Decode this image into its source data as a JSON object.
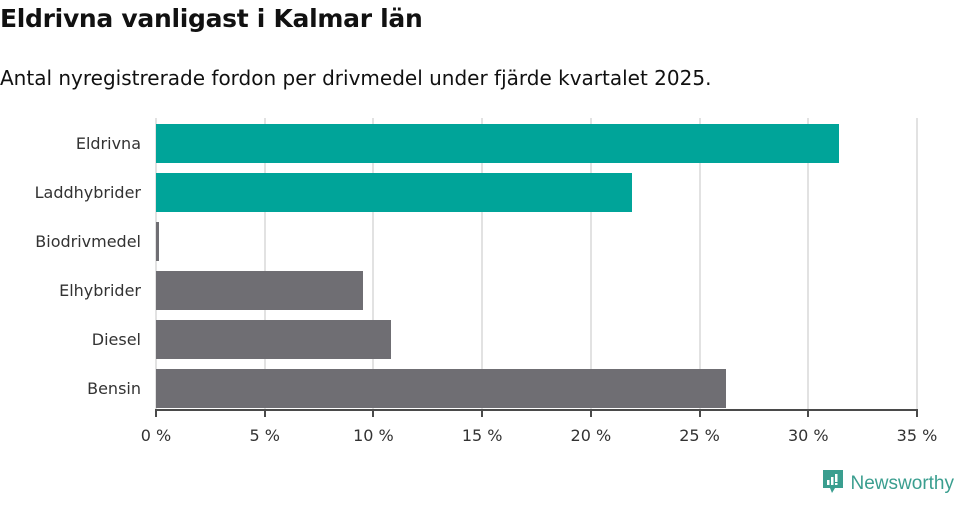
{
  "header": {
    "title": "Eldrivna vanligast i Kalmar län",
    "subtitle": "Antal nyregistrerade fordon per drivmedel under fjärde kvartalet 2025."
  },
  "colors": {
    "highlight": "#00a499",
    "default": "#6f6e73",
    "grid": "#e2e2e2",
    "axis": "#4a4a4a",
    "brand": "#3a9e8f"
  },
  "chart_data": {
    "type": "bar",
    "orientation": "horizontal",
    "title": "Eldrivna vanligast i Kalmar län",
    "subtitle": "Antal nyregistrerade fordon per drivmedel under fjärde kvartalet 2025.",
    "categories": [
      "Eldrivna",
      "Laddhybrider",
      "Biodrivmedel",
      "Elhybrider",
      "Diesel",
      "Bensin"
    ],
    "values": [
      31.4,
      21.9,
      0.1,
      9.5,
      10.8,
      26.2
    ],
    "highlighted": [
      true,
      true,
      false,
      false,
      false,
      false
    ],
    "xlabel": "",
    "ylabel": "",
    "xlim": [
      0,
      35
    ],
    "xticks": [
      0,
      5,
      10,
      15,
      20,
      25,
      30,
      35
    ],
    "xtick_labels": [
      "0 %",
      "5 %",
      "10 %",
      "15 %",
      "20 %",
      "25 %",
      "30 %",
      "35 %"
    ],
    "unit": "%",
    "grid": true,
    "legend": null
  },
  "branding": {
    "logo_text": "Newsworthy",
    "logo_icon": "bar-chart-speech-bubble-icon"
  }
}
